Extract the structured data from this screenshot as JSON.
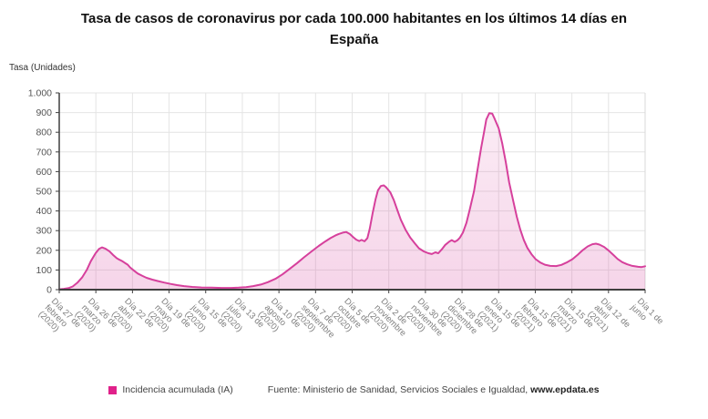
{
  "title": "Tasa de casos de coronavirus por cada 100.000 habitantes en los últimos 14 días en España",
  "y_axis_title": "Tasa (Unidades)",
  "legend": {
    "label": "Incidencia acumulada (IA)",
    "marker_color": "#e0218a"
  },
  "source": {
    "prefix": "Fuente: Ministerio de Sanidad, Servicios Sociales e Igualdad, ",
    "bold": "www.epdata.es"
  },
  "colors": {
    "line": "#d6409c",
    "grid": "#e4e4e4",
    "plot_border": "#d8d8d8",
    "axis": "#3f3f3f",
    "y_tick_text": "#555555",
    "x_tick_text": "#7d7d7d"
  },
  "chart_data": {
    "type": "area",
    "title": "Tasa de casos de coronavirus por cada 100.000 habitantes en los últimos 14 días en España",
    "xlabel": "",
    "ylabel": "Tasa (Unidades)",
    "ylim": [
      0,
      1000
    ],
    "grid": true,
    "legend_position": "bottom",
    "y_tick_labels": [
      "0",
      "100",
      "200",
      "300",
      "400",
      "500",
      "600",
      "700",
      "800",
      "900",
      "1.000"
    ],
    "y_tick_values": [
      0,
      100,
      200,
      300,
      400,
      500,
      600,
      700,
      800,
      900,
      1000
    ],
    "categories": [
      "Día 27 de febrero (2020)",
      "Día 26 de marzo (2020)",
      "Día 22 de abril (2020)",
      "Día 19 de mayo (2020)",
      "Día 15 de junio (2020)",
      "Día 13 de julio (2020)",
      "Día 10 de agosto (2020)",
      "Día 7 de septiembre (2020)",
      "Día 5 de octubre (2020)",
      "Día 2 de noviembre (2020)",
      "Día 30 de noviembre (2020)",
      "Día 28 de diciembre (2020)",
      "Día 15 de enero (2021)",
      "Día 15 de febrero (2021)",
      "Día 15 de marzo (2021)",
      "Día 12 de abril (2021)",
      "Día 1 de junio"
    ],
    "series": [
      {
        "name": "Incidencia acumulada (IA)",
        "color": "#d6409c",
        "points_note": "pairs of [fraction along x-axis 0..1, rate per 100.000]",
        "points": [
          [
            0.0,
            2
          ],
          [
            0.008,
            4
          ],
          [
            0.016,
            8
          ],
          [
            0.023,
            16
          ],
          [
            0.031,
            35
          ],
          [
            0.039,
            62
          ],
          [
            0.047,
            100
          ],
          [
            0.054,
            145
          ],
          [
            0.062,
            185
          ],
          [
            0.068,
            207
          ],
          [
            0.073,
            215
          ],
          [
            0.079,
            208
          ],
          [
            0.086,
            194
          ],
          [
            0.092,
            176
          ],
          [
            0.098,
            160
          ],
          [
            0.103,
            152
          ],
          [
            0.107,
            146
          ],
          [
            0.112,
            136
          ],
          [
            0.117,
            127
          ],
          [
            0.121,
            113
          ],
          [
            0.128,
            96
          ],
          [
            0.134,
            82
          ],
          [
            0.142,
            70
          ],
          [
            0.149,
            60
          ],
          [
            0.159,
            51
          ],
          [
            0.168,
            44
          ],
          [
            0.179,
            36
          ],
          [
            0.19,
            29
          ],
          [
            0.201,
            23
          ],
          [
            0.213,
            18
          ],
          [
            0.227,
            14
          ],
          [
            0.243,
            11
          ],
          [
            0.26,
            10
          ],
          [
            0.277,
            9
          ],
          [
            0.294,
            9
          ],
          [
            0.306,
            10
          ],
          [
            0.319,
            13
          ],
          [
            0.331,
            18
          ],
          [
            0.344,
            26
          ],
          [
            0.356,
            38
          ],
          [
            0.369,
            55
          ],
          [
            0.381,
            78
          ],
          [
            0.393,
            105
          ],
          [
            0.406,
            135
          ],
          [
            0.418,
            165
          ],
          [
            0.431,
            195
          ],
          [
            0.443,
            222
          ],
          [
            0.454,
            245
          ],
          [
            0.463,
            262
          ],
          [
            0.471,
            275
          ],
          [
            0.477,
            283
          ],
          [
            0.484,
            290
          ],
          [
            0.49,
            293
          ],
          [
            0.496,
            283
          ],
          [
            0.502,
            266
          ],
          [
            0.507,
            254
          ],
          [
            0.512,
            247
          ],
          [
            0.516,
            253
          ],
          [
            0.521,
            246
          ],
          [
            0.526,
            262
          ],
          [
            0.53,
            310
          ],
          [
            0.535,
            390
          ],
          [
            0.54,
            460
          ],
          [
            0.544,
            505
          ],
          [
            0.549,
            527
          ],
          [
            0.554,
            530
          ],
          [
            0.558,
            520
          ],
          [
            0.565,
            495
          ],
          [
            0.571,
            455
          ],
          [
            0.577,
            405
          ],
          [
            0.583,
            355
          ],
          [
            0.591,
            305
          ],
          [
            0.599,
            265
          ],
          [
            0.607,
            235
          ],
          [
            0.614,
            210
          ],
          [
            0.622,
            195
          ],
          [
            0.63,
            185
          ],
          [
            0.636,
            181
          ],
          [
            0.642,
            190
          ],
          [
            0.647,
            185
          ],
          [
            0.653,
            205
          ],
          [
            0.659,
            228
          ],
          [
            0.666,
            245
          ],
          [
            0.67,
            252
          ],
          [
            0.675,
            243
          ],
          [
            0.68,
            252
          ],
          [
            0.684,
            265
          ],
          [
            0.689,
            290
          ],
          [
            0.695,
            340
          ],
          [
            0.701,
            410
          ],
          [
            0.708,
            500
          ],
          [
            0.714,
            610
          ],
          [
            0.72,
            720
          ],
          [
            0.725,
            800
          ],
          [
            0.729,
            865
          ],
          [
            0.734,
            897
          ],
          [
            0.739,
            895
          ],
          [
            0.743,
            870
          ],
          [
            0.75,
            820
          ],
          [
            0.756,
            745
          ],
          [
            0.762,
            650
          ],
          [
            0.768,
            545
          ],
          [
            0.775,
            450
          ],
          [
            0.781,
            370
          ],
          [
            0.787,
            305
          ],
          [
            0.793,
            252
          ],
          [
            0.799,
            212
          ],
          [
            0.806,
            180
          ],
          [
            0.813,
            155
          ],
          [
            0.821,
            138
          ],
          [
            0.829,
            127
          ],
          [
            0.838,
            121
          ],
          [
            0.848,
            120
          ],
          [
            0.857,
            126
          ],
          [
            0.866,
            138
          ],
          [
            0.876,
            155
          ],
          [
            0.885,
            178
          ],
          [
            0.894,
            202
          ],
          [
            0.902,
            220
          ],
          [
            0.91,
            231
          ],
          [
            0.916,
            234
          ],
          [
            0.922,
            229
          ],
          [
            0.93,
            217
          ],
          [
            0.938,
            198
          ],
          [
            0.946,
            176
          ],
          [
            0.953,
            156
          ],
          [
            0.961,
            140
          ],
          [
            0.969,
            129
          ],
          [
            0.978,
            121
          ],
          [
            0.988,
            116
          ],
          [
            0.994,
            115
          ],
          [
            1.0,
            119
          ]
        ]
      }
    ]
  }
}
